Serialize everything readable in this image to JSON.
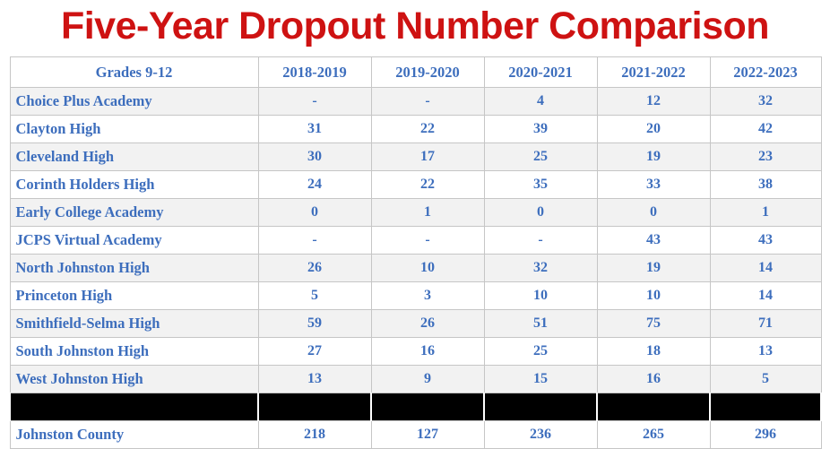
{
  "title": "Five-Year Dropout Number Comparison",
  "colors": {
    "title_red": "#ce1212",
    "text_blue": "#3d6ebd",
    "stripe_gray": "#f2f2f2",
    "border_gray": "#c6c6c6",
    "redacted_black": "#000000"
  },
  "table": {
    "columns": [
      "Grades 9-12",
      "2018-2019",
      "2019-2020",
      "2020-2021",
      "2021-2022",
      "2022-2023"
    ],
    "rows": [
      {
        "name": "Choice Plus Academy",
        "values": [
          "-",
          "-",
          "4",
          "12",
          "32"
        ],
        "redacted": false
      },
      {
        "name": "Clayton High",
        "values": [
          "31",
          "22",
          "39",
          "20",
          "42"
        ],
        "redacted": false
      },
      {
        "name": "Cleveland High",
        "values": [
          "30",
          "17",
          "25",
          "19",
          "23"
        ],
        "redacted": false
      },
      {
        "name": "Corinth Holders High",
        "values": [
          "24",
          "22",
          "35",
          "33",
          "38"
        ],
        "redacted": false
      },
      {
        "name": "Early College Academy",
        "values": [
          "0",
          "1",
          "0",
          "0",
          "1"
        ],
        "redacted": false
      },
      {
        "name": "JCPS Virtual Academy",
        "values": [
          "-",
          "-",
          "-",
          "43",
          "43"
        ],
        "redacted": false
      },
      {
        "name": "North Johnston High",
        "values": [
          "26",
          "10",
          "32",
          "19",
          "14"
        ],
        "redacted": false
      },
      {
        "name": "Princeton High",
        "values": [
          "5",
          "3",
          "10",
          "10",
          "14"
        ],
        "redacted": false
      },
      {
        "name": "Smithfield-Selma High",
        "values": [
          "59",
          "26",
          "51",
          "75",
          "71"
        ],
        "redacted": false
      },
      {
        "name": "South Johnston High",
        "values": [
          "27",
          "16",
          "25",
          "18",
          "13"
        ],
        "redacted": false
      },
      {
        "name": "West Johnston High",
        "values": [
          "13",
          "9",
          "15",
          "16",
          "5"
        ],
        "redacted": false
      },
      {
        "name": "",
        "values": [
          "",
          "",
          "",
          "",
          ""
        ],
        "redacted": true
      },
      {
        "name": "Johnston County",
        "values": [
          "218",
          "127",
          "236",
          "265",
          "296"
        ],
        "redacted": false
      }
    ]
  }
}
